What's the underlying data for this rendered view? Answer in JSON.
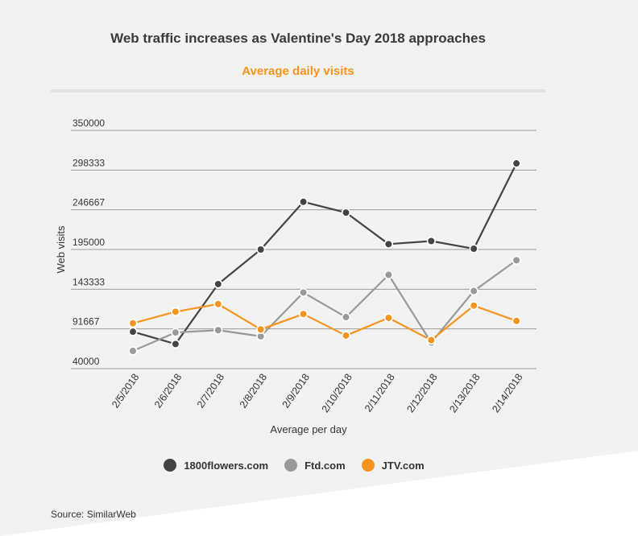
{
  "chart_data": {
    "type": "line",
    "title": "Web traffic increases as Valentine's Day 2018 approaches",
    "subtitle": "Average daily visits",
    "xlabel": "Average per day",
    "ylabel": "Web visits",
    "categories": [
      "2/5/2018",
      "2/6/2018",
      "2/7/2018",
      "2/8/2018",
      "2/9/2018",
      "2/10/2018",
      "2/11/2018",
      "2/12/2018",
      "2/13/2018",
      "2/14/2018"
    ],
    "yticks": [
      "350000",
      "298333",
      "246667",
      "195000",
      "143333",
      "91667",
      "40000"
    ],
    "ylim": [
      40000,
      350000
    ],
    "grid": true,
    "legend_position": "bottom",
    "series": [
      {
        "name": "1800flowers.com",
        "color": "#444444",
        "values": [
          88000,
          72000,
          150000,
          195000,
          257000,
          243000,
          202000,
          206000,
          196000,
          307000
        ]
      },
      {
        "name": "Ftd.com",
        "color": "#999999",
        "values": [
          63000,
          87000,
          90000,
          82000,
          139000,
          107000,
          162000,
          74000,
          141000,
          181000
        ]
      },
      {
        "name": "JTV.com",
        "color": "#f7941d",
        "values": [
          99000,
          114000,
          124000,
          91000,
          111000,
          83000,
          106000,
          77000,
          122000,
          102000
        ]
      }
    ]
  },
  "source": "Source: SimilarWeb"
}
